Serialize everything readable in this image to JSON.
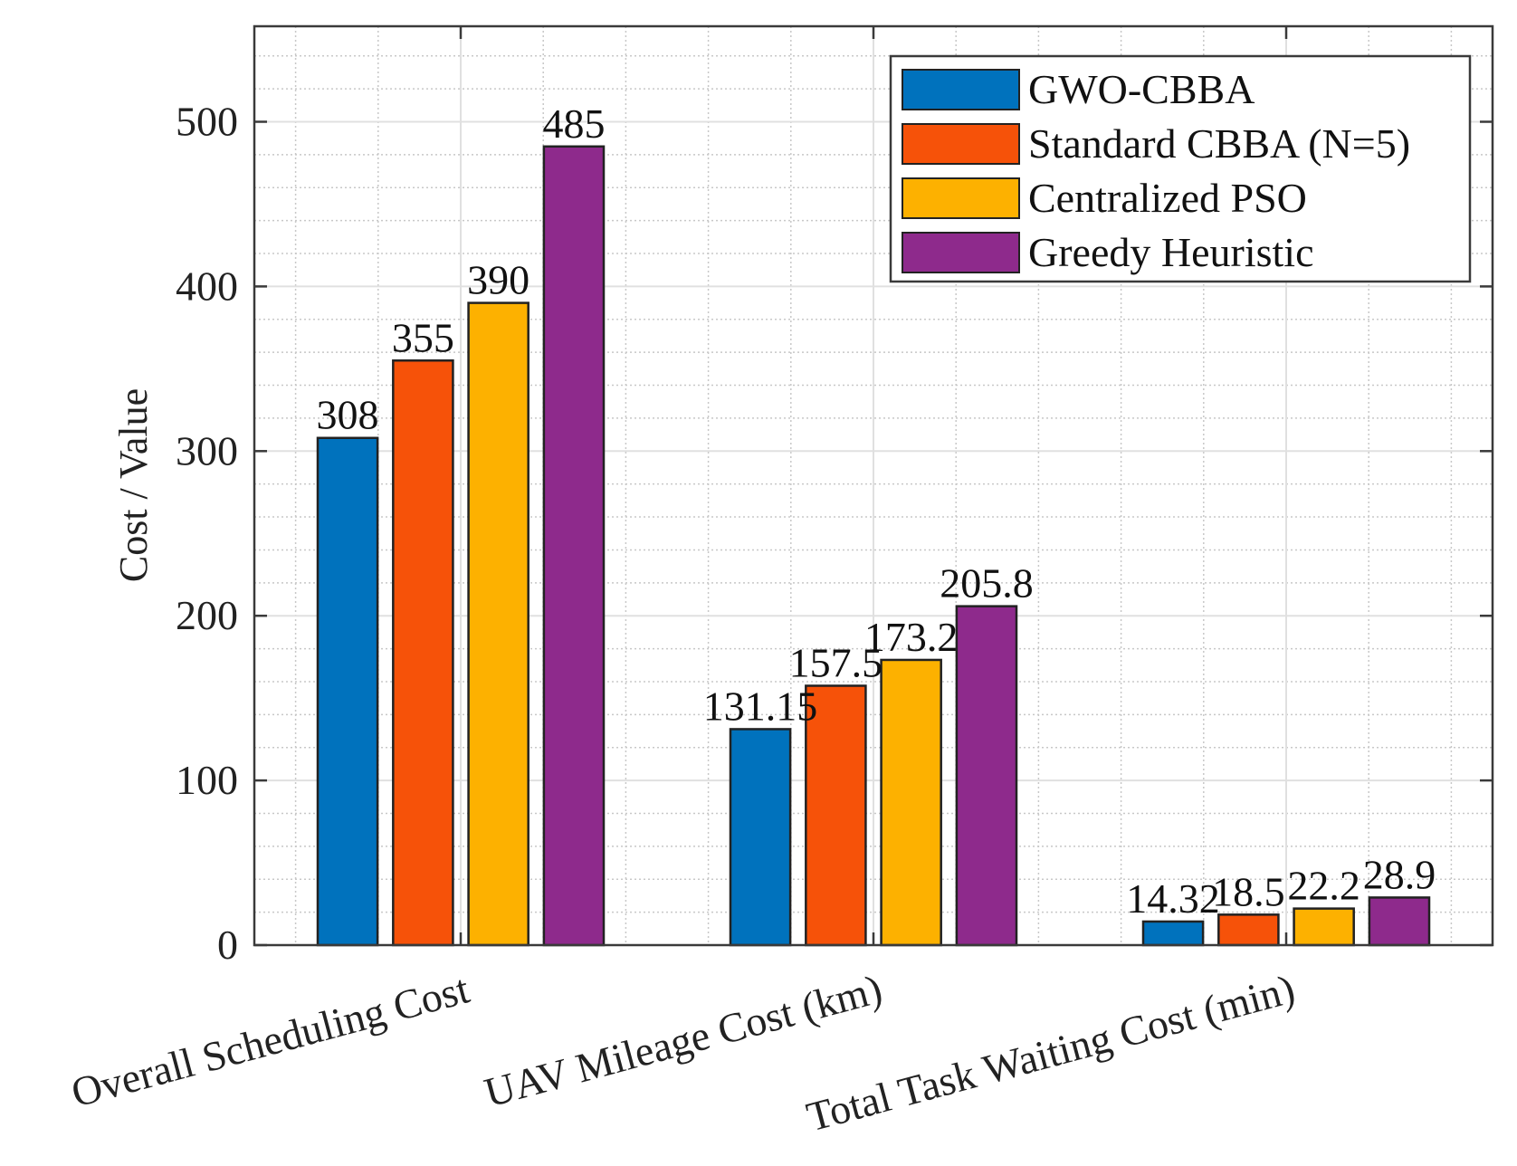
{
  "chart_data": {
    "type": "bar",
    "title": "",
    "xlabel": "",
    "ylabel": "Cost / Value",
    "categories": [
      "Overall Scheduling Cost",
      "UAV Mileage Cost (km)",
      "Total Task Waiting Cost (min)"
    ],
    "series": [
      {
        "name": "GWO-CBBA",
        "color": "#0072BD",
        "values": [
          308,
          131.15,
          14.32
        ],
        "labels": [
          "308",
          "131.15",
          "14.32"
        ]
      },
      {
        "name": "Standard CBBA (N=5)",
        "color": "#F65209",
        "values": [
          355,
          157.5,
          18.5
        ],
        "labels": [
          "355",
          "157.5",
          "18.5"
        ]
      },
      {
        "name": "Centralized PSO",
        "color": "#FDB100",
        "values": [
          390,
          173.2,
          22.2
        ],
        "labels": [
          "390",
          "173.2",
          "22.2"
        ]
      },
      {
        "name": "Greedy Heuristic",
        "color": "#8E2A8C",
        "values": [
          485,
          205.8,
          28.9
        ],
        "labels": [
          "485",
          "205.8",
          "28.9"
        ]
      }
    ],
    "ylim": [
      0,
      558
    ],
    "yticks": [
      0,
      100,
      200,
      300,
      400,
      500
    ],
    "grid": true,
    "minor_grid": true,
    "legend_position": "top-right"
  }
}
